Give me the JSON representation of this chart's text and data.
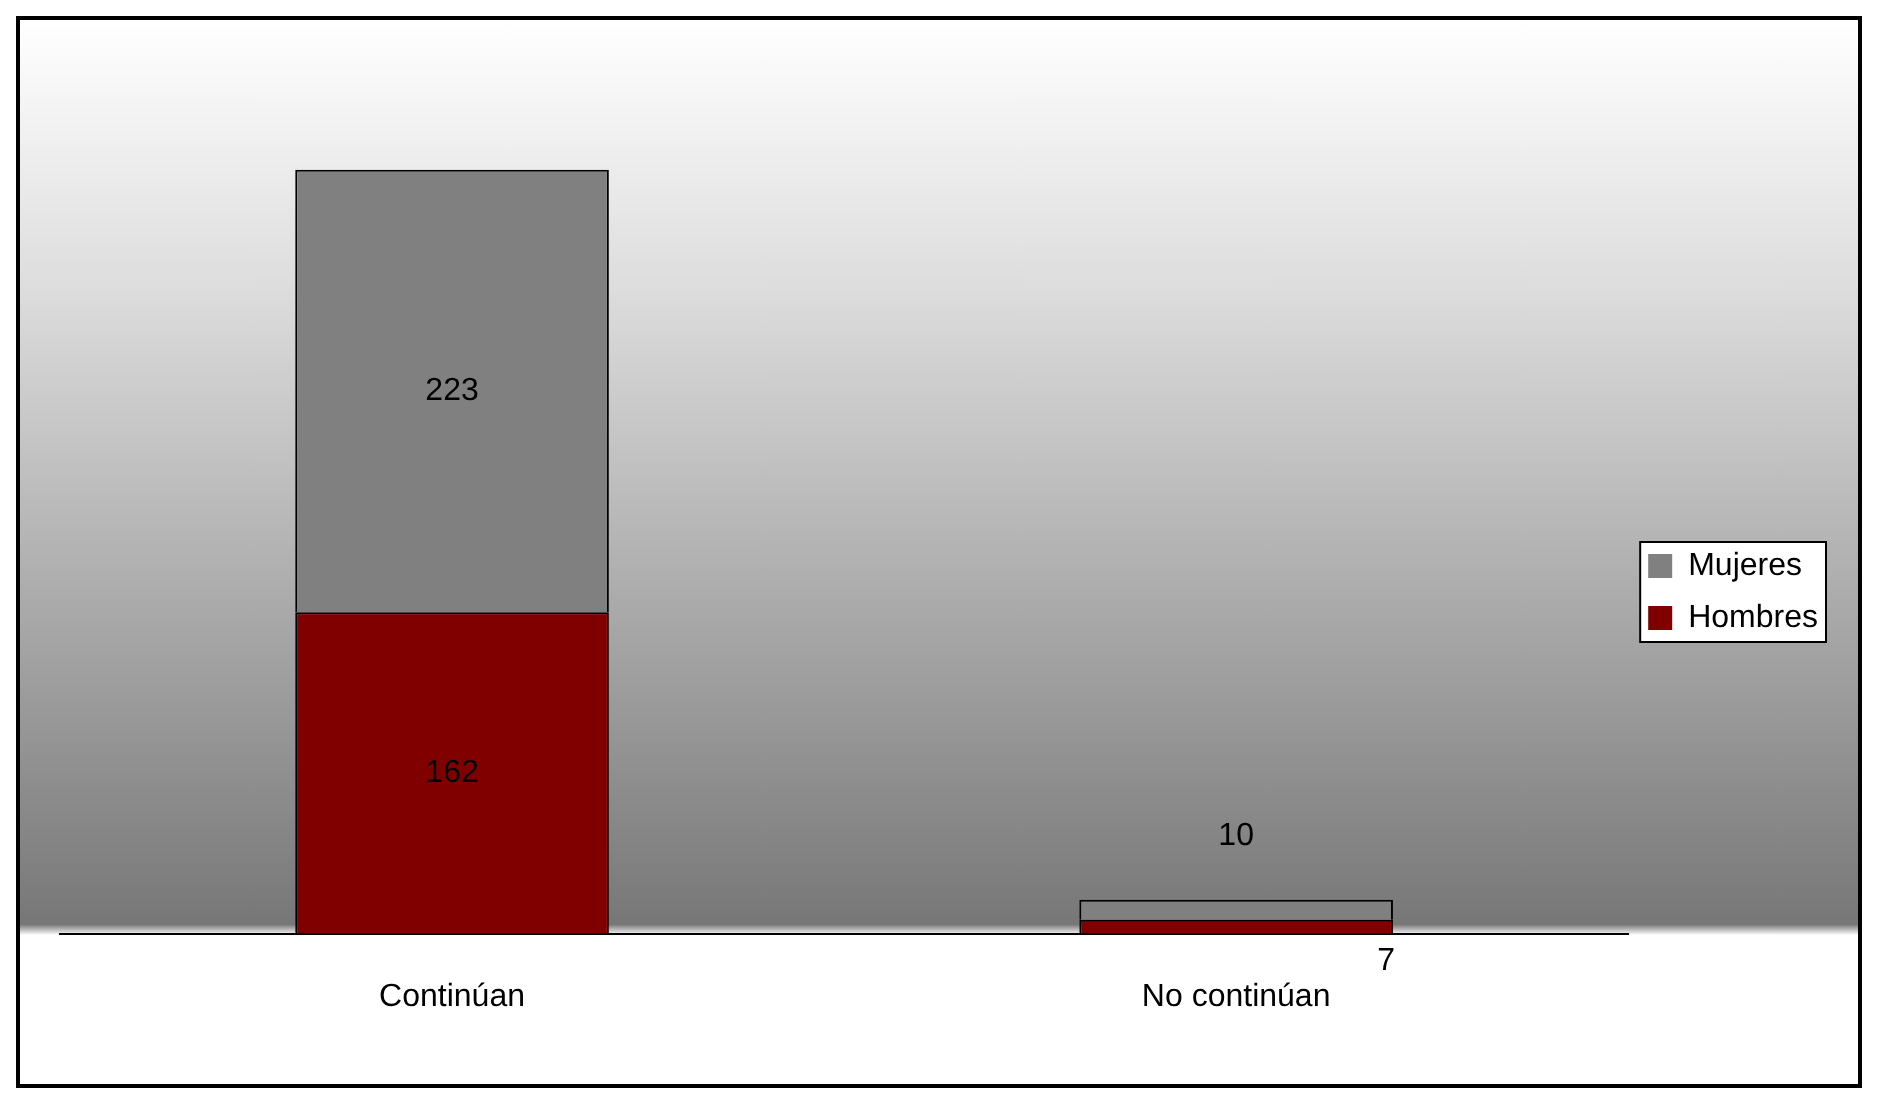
{
  "chart_data": {
    "type": "bar",
    "stacked": true,
    "categories": [
      "Continúan",
      "No continúan"
    ],
    "series": [
      {
        "name": "Hombres",
        "color": "#800000",
        "values": [
          162,
          7
        ]
      },
      {
        "name": "Mujeres",
        "color": "#808080",
        "values": [
          223,
          10
        ]
      }
    ],
    "data_labels": true,
    "legend": "right",
    "grid": false,
    "tick_labels": "x"
  }
}
